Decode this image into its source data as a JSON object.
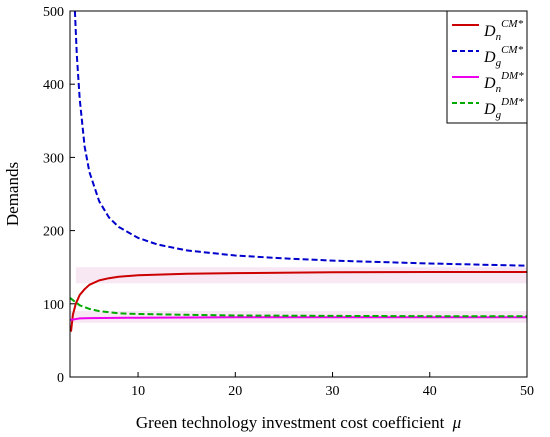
{
  "chart_data": {
    "type": "line",
    "xlabel": "Green technology investment cost coefficient",
    "xlabel_symbol": "μ",
    "ylabel": "Demands",
    "xlim": [
      3,
      50
    ],
    "ylim": [
      0,
      500
    ],
    "x_ticks": [
      10,
      20,
      30,
      40,
      50
    ],
    "y_ticks": [
      0,
      100,
      200,
      300,
      400,
      500
    ],
    "grid": false,
    "legend_position": "top-right",
    "series": [
      {
        "name": "D_n^CM*",
        "legend": {
          "base": "D",
          "sub": "n",
          "sup": "CM*"
        },
        "color": "#cc0000",
        "style": "solid",
        "x": [
          3.1,
          3.3,
          3.6,
          4,
          4.5,
          5,
          6,
          7,
          8,
          10,
          15,
          20,
          30,
          40,
          50
        ],
        "y": [
          62,
          85,
          100,
          112,
          120,
          126,
          132,
          135,
          137,
          139,
          141,
          142,
          143,
          143.5,
          143.5
        ]
      },
      {
        "name": "D_g^CM*",
        "legend": {
          "base": "D",
          "sub": "g",
          "sup": "CM*"
        },
        "color": "#0000cc",
        "style": "dashed",
        "x": [
          3.5,
          3.7,
          4,
          4.5,
          5,
          6,
          7,
          8,
          10,
          12,
          15,
          20,
          25,
          30,
          40,
          50
        ],
        "y": [
          500,
          440,
          380,
          315,
          280,
          240,
          218,
          205,
          190,
          181,
          173,
          166,
          162,
          159,
          155,
          152
        ]
      },
      {
        "name": "D_n^DM*",
        "legend": {
          "base": "D",
          "sub": "n",
          "sup": "DM*"
        },
        "color": "#ee00ee",
        "style": "solid",
        "x": [
          3,
          3.5,
          4,
          5,
          10,
          20,
          30,
          40,
          50
        ],
        "y": [
          78,
          79,
          80,
          80.5,
          81,
          81.5,
          81.5,
          81.5,
          81.5
        ]
      },
      {
        "name": "D_g^DM*",
        "legend": {
          "base": "D",
          "sub": "g",
          "sup": "DM*"
        },
        "color": "#00aa00",
        "style": "dashed",
        "x": [
          3,
          3.5,
          4,
          5,
          6,
          8,
          10,
          15,
          20,
          30,
          40,
          50
        ],
        "y": [
          108,
          103,
          98,
          93,
          90,
          87,
          86,
          85,
          84,
          83.5,
          83,
          83
        ]
      }
    ]
  }
}
